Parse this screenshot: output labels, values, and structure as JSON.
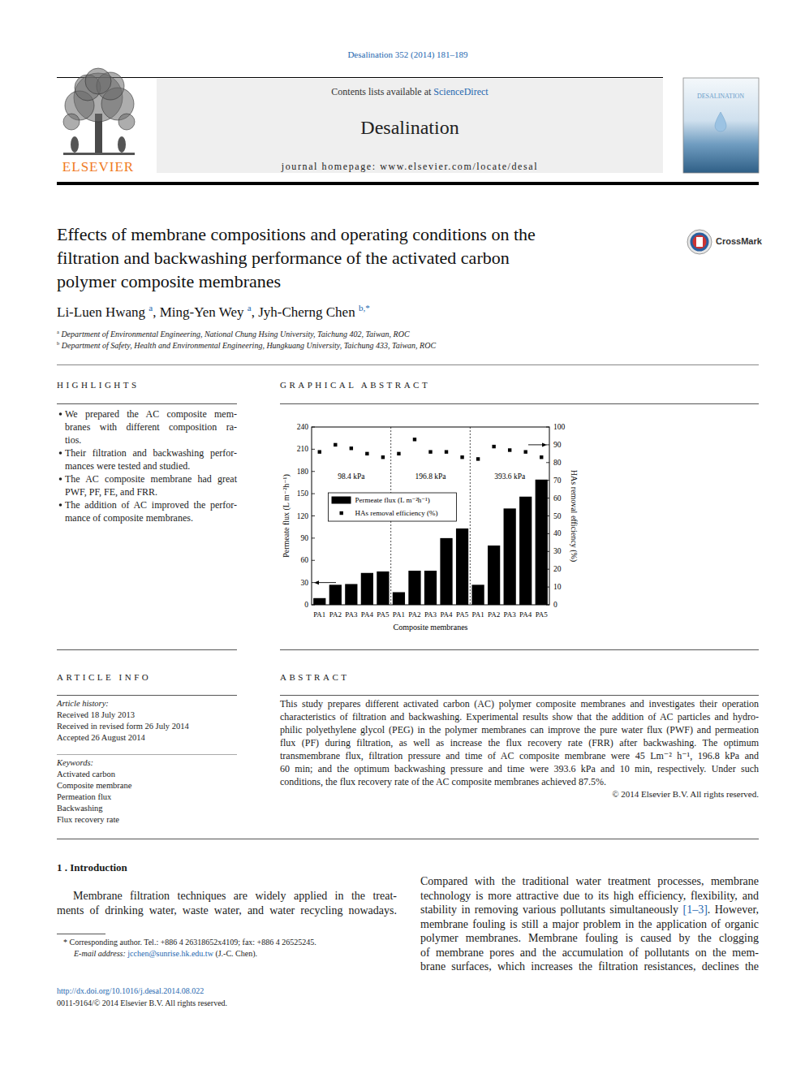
{
  "header": {
    "citation": "Desalination 352 (2014) 181–189",
    "contents": [
      {
        "t": "Contents lists available at "
      },
      {
        "t": "ScienceDirect",
        "link": true
      }
    ],
    "journal": "Desalination",
    "homepage": "journal homepage: www.elsevier.com/locate/desal",
    "publisher": "ELSEVIER",
    "cover_title": "DESALINATION"
  },
  "article": {
    "title_lines": [
      "Effects of membrane compositions and operating conditions on the",
      "filtration and backwashing performance of the activated carbon",
      "polymer composite membranes"
    ],
    "crossmark": "CrossMark",
    "authors": [
      {
        "t": "Li-Luen Hwang "
      },
      {
        "t": "a",
        "sup": true,
        "link": true
      },
      {
        "t": ", Ming-Yen Wey "
      },
      {
        "t": "a",
        "sup": true,
        "link": true
      },
      {
        "t": ", Jyh-Cherng Chen "
      },
      {
        "t": "b,*",
        "sup": true,
        "link": true
      }
    ],
    "affiliations": [
      [
        {
          "t": "a",
          "sup": true
        },
        {
          "t": " Department of Environmental Engineering, National Chung Hsing University, Taichung 402, Taiwan, ROC",
          "italic": true
        }
      ],
      [
        {
          "t": "b",
          "sup": true
        },
        {
          "t": " Department of Safety, Health and Environmental Engineering, Hungkuang University, Taichung 433, Taiwan, ROC",
          "italic": true
        }
      ]
    ]
  },
  "highlights": {
    "heading": "HIGHLIGHTS",
    "items": [
      [
        "We prepared the AC composite mem-",
        "branes with different composition ra-",
        "tios."
      ],
      [
        "Their filtration and backwashing perfor-",
        "mances were tested and studied."
      ],
      [
        "The AC composite membrane had great",
        "PWF, PF, FE, and FRR."
      ],
      [
        "The addition of AC improved the perfor-",
        "mance of composite membranes."
      ]
    ]
  },
  "graphical_abstract": {
    "heading": "GRAPHICAL ABSTRACT"
  },
  "chart_data": {
    "type": "bar",
    "categories": [
      "PA1",
      "PA2",
      "PA3",
      "PA4",
      "PA5",
      "PA1",
      "PA2",
      "PA3",
      "PA4",
      "PA5",
      "PA1",
      "PA2",
      "PA3",
      "PA4",
      "PA5"
    ],
    "series": [
      {
        "name": "Permeate flux (L m⁻²h⁻¹)",
        "type": "bar",
        "color": "#000000",
        "values": [
          9,
          27,
          28,
          43,
          45,
          17,
          46,
          46,
          90,
          103,
          27,
          80,
          130,
          146,
          169
        ]
      },
      {
        "name": "HAs removal efficiency (%)",
        "type": "scatter",
        "marker": "square",
        "color": "#000000",
        "axis": "y2",
        "values": [
          86,
          90,
          88,
          85,
          83,
          85,
          93,
          86,
          86,
          83,
          82,
          89,
          87,
          86,
          83
        ]
      }
    ],
    "ylim": [
      0,
      240
    ],
    "yticks": [
      0,
      30,
      60,
      90,
      120,
      150,
      180,
      210,
      240
    ],
    "y2lim": [
      0,
      100
    ],
    "y2ticks": [
      0,
      10,
      20,
      30,
      40,
      50,
      60,
      70,
      80,
      90,
      100
    ],
    "x_label": "Composite membranes",
    "y_label": "Permeate flux (L m⁻²h⁻¹)",
    "y2_label": "HAs removal efficiency (%)",
    "annotations": [
      "98.4 kPa",
      "196.8 kPa",
      "393.6 kPa"
    ],
    "legend": "center"
  },
  "article_info": {
    "heading": "ARTICLE INFO",
    "history_label": "Article history:",
    "history": [
      "Received 18 July 2013",
      "Received in revised form 26 July 2014",
      "Accepted 26 August 2014"
    ],
    "keywords_label": "Keywords:",
    "keywords": [
      "Activated carbon",
      "Composite membrane",
      "Permeation flux",
      "Backwashing",
      "Flux recovery rate"
    ]
  },
  "abstract": {
    "heading": "ABSTRACT",
    "lines": [
      "This study prepares different activated carbon (AC) polymer composite membranes and investigates their operation",
      "characteristics of filtration and backwashing. Experimental results show that the addition of AC particles and hydro-",
      "philic polyethylene glycol (PEG) in the polymer membranes can improve the pure water flux (PWF) and permeation",
      "flux (PF) during filtration, as well as increase the flux recovery rate (FRR) after backwashing. The optimum",
      "transmembrane flux, filtration pressure and time of AC composite membrane were 45 Lm⁻² h⁻¹, 196.8 kPa and",
      "60 min; and the optimum backwashing pressure and time were 393.6 kPa and 10 min, respectively. Under such",
      "conditions, the flux recovery rate of the AC composite membranes achieved 87.5%."
    ],
    "copyright": "© 2014 Elsevier B.V. All rights reserved."
  },
  "introduction": {
    "heading": "1 . Introduction",
    "left_lines": [
      "Membrane filtration techniques are widely applied in the treat-",
      "ments of drinking water, waste water, and water recycling nowadays."
    ],
    "right_lines": [
      "Compared with the traditional water treatment processes, membrane",
      "technology is more attractive due to its high efficiency, flexibility, and",
      [
        {
          "t": "stability in removing various pollutants simultaneously "
        },
        {
          "t": "[1–3]",
          "link": true
        },
        {
          "t": ". However,"
        }
      ],
      "membrane fouling is still a major problem in the application of organic",
      "polymer membranes. Membrane fouling is caused by the clogging",
      "of membrane pores and the accumulation of pollutants on the mem-",
      "brane surfaces, which increases the filtration resistances, declines the"
    ]
  },
  "footnote": {
    "lines": [
      [
        {
          "t": "* Corresponding author. Tel.: +886 4 26318652x4109; fax: +886 4 26525245."
        }
      ],
      [
        {
          "t": "E-mail address: ",
          "italic": true
        },
        {
          "t": "jcchen@sunrise.hk.edu.tw",
          "link": true
        },
        {
          "t": " (J.-C. Chen)."
        }
      ]
    ]
  },
  "footer": {
    "doi": "http://dx.doi.org/10.1016/j.desal.2014.08.022",
    "issn": "0011-9164/© 2014 Elsevier B.V. All rights reserved."
  }
}
